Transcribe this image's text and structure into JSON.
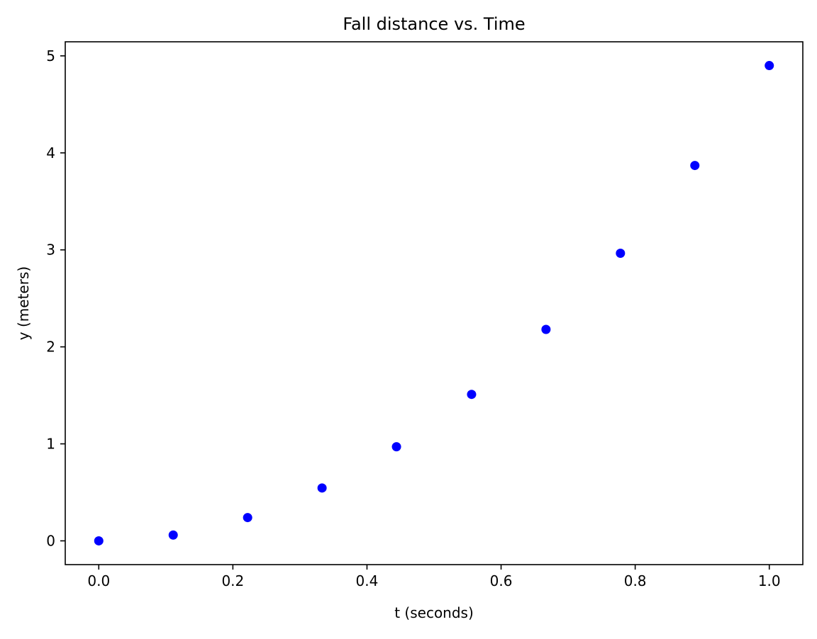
{
  "chart_data": {
    "type": "scatter",
    "title": "Fall distance vs. Time",
    "xlabel": "t (seconds)",
    "ylabel": "y (meters)",
    "xlim": [
      -0.05,
      1.05
    ],
    "ylim": [
      -0.245,
      5.145
    ],
    "xticks": [
      0.0,
      0.2,
      0.4,
      0.6,
      0.8,
      1.0
    ],
    "xtick_labels": [
      "0.0",
      "0.2",
      "0.4",
      "0.6",
      "0.8",
      "1.0"
    ],
    "yticks": [
      0,
      1,
      2,
      3,
      4,
      5
    ],
    "ytick_labels": [
      "0",
      "1",
      "2",
      "3",
      "4",
      "5"
    ],
    "grid": false,
    "series": [
      {
        "color": "#0000ff",
        "x": [
          0.0,
          0.111,
          0.222,
          0.333,
          0.444,
          0.556,
          0.667,
          0.778,
          0.889,
          1.0
        ],
        "y": [
          0.0,
          0.06,
          0.24,
          0.545,
          0.97,
          1.51,
          2.18,
          2.965,
          3.87,
          4.9
        ]
      }
    ]
  }
}
